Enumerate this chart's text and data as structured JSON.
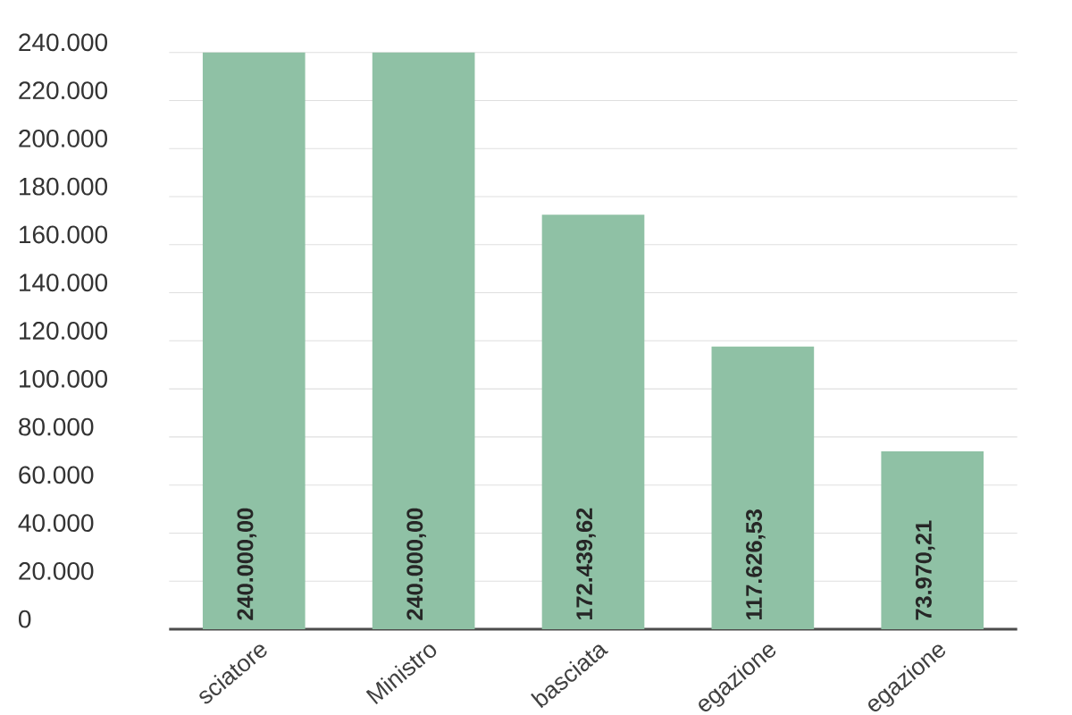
{
  "chart_data": {
    "type": "bar",
    "categories": [
      "sciatore",
      "Ministro",
      "basciata",
      "egazione",
      "egazione"
    ],
    "values": [
      240000,
      240000,
      172439.62,
      117626.53,
      73970.21
    ],
    "value_labels": [
      "240.000,00",
      "240.000,00",
      "172.439,62",
      "117.626,53",
      "73.970,21"
    ],
    "color": "#8fc1a5",
    "ylim": [
      0,
      240000
    ],
    "yticks": [
      {
        "value": 0,
        "label": "0"
      },
      {
        "value": 20000,
        "label": "20.000"
      },
      {
        "value": 40000,
        "label": "40.000"
      },
      {
        "value": 60000,
        "label": "60.000"
      },
      {
        "value": 80000,
        "label": "80.000"
      },
      {
        "value": 100000,
        "label": "100.000"
      },
      {
        "value": 120000,
        "label": "120.000"
      },
      {
        "value": 140000,
        "label": "140.000"
      },
      {
        "value": 160000,
        "label": "160.000"
      },
      {
        "value": 180000,
        "label": "180.000"
      },
      {
        "value": 200000,
        "label": "200.000"
      },
      {
        "value": 220000,
        "label": "220.000"
      },
      {
        "value": 240000,
        "label": "240.000"
      }
    ],
    "grid": "y"
  }
}
